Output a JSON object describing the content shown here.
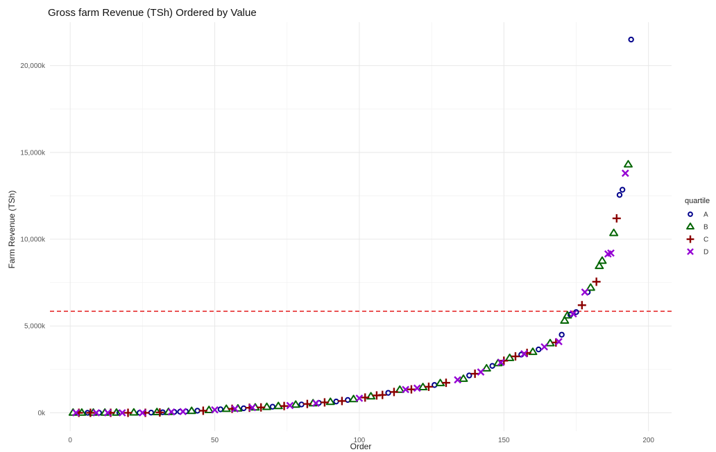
{
  "chart_data": {
    "type": "scatter",
    "title": "Gross farm Revenue (TSh) Ordered by Value",
    "xlabel": "Order",
    "ylabel": "Farm Revenue (TSh)",
    "xlim": [
      -7,
      208
    ],
    "ylim": [
      -1060000,
      22500000
    ],
    "x_ticks": [
      0,
      50,
      100,
      150,
      200
    ],
    "y_ticks": [
      0,
      5000000,
      10000000,
      15000000,
      20000000
    ],
    "y_tick_labels": [
      "0k",
      "5,000k",
      "10,000k",
      "15,000k",
      "20,000k"
    ],
    "grid": true,
    "reference_line": {
      "y": 5850000,
      "color": "#e31a1c",
      "style": "dashed"
    },
    "legend": {
      "title": "quartile",
      "position": "right",
      "entries": [
        {
          "label": "A",
          "shape": "circle",
          "color": "#00008B"
        },
        {
          "label": "B",
          "shape": "triangle",
          "color": "#006400"
        },
        {
          "label": "C",
          "shape": "plus",
          "color": "#8B0000"
        },
        {
          "label": "D",
          "shape": "cross",
          "color": "#9400D3"
        }
      ]
    },
    "series": [
      {
        "name": "A",
        "points": [
          [
            6,
            0
          ],
          [
            10,
            0
          ],
          [
            17,
            0
          ],
          [
            24,
            0
          ],
          [
            28,
            10000
          ],
          [
            32,
            30000
          ],
          [
            36,
            50000
          ],
          [
            38,
            60000
          ],
          [
            40,
            80000
          ],
          [
            44,
            120000
          ],
          [
            52,
            200000
          ],
          [
            60,
            260000
          ],
          [
            70,
            350000
          ],
          [
            80,
            480000
          ],
          [
            86,
            570000
          ],
          [
            92,
            650000
          ],
          [
            96,
            740000
          ],
          [
            110,
            1150000
          ],
          [
            126,
            1600000
          ],
          [
            138,
            2150000
          ],
          [
            146,
            2700000
          ],
          [
            156,
            3350000
          ],
          [
            162,
            3650000
          ],
          [
            170,
            4500000
          ],
          [
            173,
            5650000
          ],
          [
            175,
            5800000
          ],
          [
            179,
            6950000
          ],
          [
            190,
            12550000
          ],
          [
            191,
            12850000
          ],
          [
            194,
            21500000
          ]
        ]
      },
      {
        "name": "B",
        "points": [
          [
            1,
            0
          ],
          [
            4,
            0
          ],
          [
            8,
            0
          ],
          [
            12,
            0
          ],
          [
            16,
            0
          ],
          [
            22,
            10000
          ],
          [
            30,
            30000
          ],
          [
            34,
            40000
          ],
          [
            42,
            100000
          ],
          [
            48,
            150000
          ],
          [
            54,
            220000
          ],
          [
            58,
            240000
          ],
          [
            64,
            300000
          ],
          [
            68,
            330000
          ],
          [
            72,
            380000
          ],
          [
            78,
            460000
          ],
          [
            84,
            540000
          ],
          [
            90,
            620000
          ],
          [
            98,
            780000
          ],
          [
            104,
            940000
          ],
          [
            114,
            1320000
          ],
          [
            122,
            1470000
          ],
          [
            128,
            1700000
          ],
          [
            136,
            1950000
          ],
          [
            144,
            2550000
          ],
          [
            148,
            2850000
          ],
          [
            152,
            3150000
          ],
          [
            160,
            3500000
          ],
          [
            166,
            4000000
          ],
          [
            171,
            5300000
          ],
          [
            172,
            5600000
          ],
          [
            180,
            7200000
          ],
          [
            183,
            8450000
          ],
          [
            184,
            8750000
          ],
          [
            188,
            10350000
          ],
          [
            193,
            14300000
          ]
        ]
      },
      {
        "name": "C",
        "points": [
          [
            3,
            0
          ],
          [
            7,
            0
          ],
          [
            14,
            0
          ],
          [
            20,
            0
          ],
          [
            26,
            0
          ],
          [
            31,
            20000
          ],
          [
            46,
            120000
          ],
          [
            56,
            230000
          ],
          [
            62,
            290000
          ],
          [
            66,
            310000
          ],
          [
            74,
            390000
          ],
          [
            82,
            510000
          ],
          [
            88,
            600000
          ],
          [
            94,
            680000
          ],
          [
            102,
            880000
          ],
          [
            106,
            1000000
          ],
          [
            108,
            1030000
          ],
          [
            112,
            1200000
          ],
          [
            118,
            1350000
          ],
          [
            124,
            1500000
          ],
          [
            130,
            1730000
          ],
          [
            140,
            2250000
          ],
          [
            150,
            3000000
          ],
          [
            154,
            3250000
          ],
          [
            158,
            3450000
          ],
          [
            168,
            4050000
          ],
          [
            177,
            6200000
          ],
          [
            182,
            7550000
          ],
          [
            189,
            11200000
          ]
        ]
      },
      {
        "name": "D",
        "points": [
          [
            2,
            0
          ],
          [
            9,
            0
          ],
          [
            13,
            0
          ],
          [
            18,
            0
          ],
          [
            25,
            0
          ],
          [
            35,
            50000
          ],
          [
            39,
            70000
          ],
          [
            50,
            170000
          ],
          [
            57,
            230000
          ],
          [
            63,
            300000
          ],
          [
            76,
            420000
          ],
          [
            85,
            550000
          ],
          [
            100,
            840000
          ],
          [
            116,
            1340000
          ],
          [
            120,
            1420000
          ],
          [
            134,
            1900000
          ],
          [
            142,
            2350000
          ],
          [
            149,
            2900000
          ],
          [
            157,
            3400000
          ],
          [
            164,
            3800000
          ],
          [
            169,
            4100000
          ],
          [
            174,
            5700000
          ],
          [
            178,
            6950000
          ],
          [
            186,
            9150000
          ],
          [
            187,
            9200000
          ],
          [
            192,
            13800000
          ]
        ]
      }
    ]
  }
}
